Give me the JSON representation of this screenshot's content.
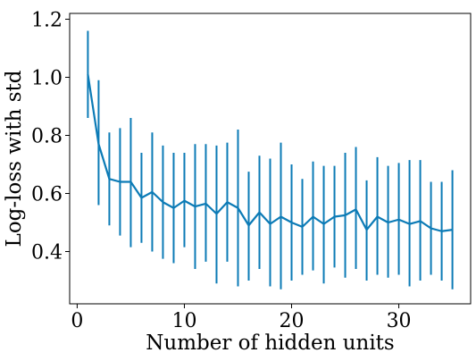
{
  "chart_data": {
    "type": "line",
    "title": "",
    "xlabel": "Number of hidden units",
    "ylabel": "Log-loss with std",
    "xlim": [
      -0.7,
      36.7
    ],
    "ylim": [
      0.22,
      1.22
    ],
    "x_ticks": [
      0,
      10,
      20,
      30
    ],
    "x_tick_labels": [
      "0",
      "10",
      "20",
      "30"
    ],
    "y_ticks": [
      0.4,
      0.6,
      0.8,
      1.0,
      1.2
    ],
    "y_tick_labels": [
      "0.4",
      "0.6",
      "0.8",
      "1.0",
      "1.2"
    ],
    "grid": false,
    "legend": false,
    "series": [
      {
        "color": "#0c7bb6",
        "x": [
          1,
          2,
          3,
          4,
          5,
          6,
          7,
          8,
          9,
          10,
          11,
          12,
          13,
          14,
          15,
          16,
          17,
          18,
          19,
          20,
          21,
          22,
          23,
          24,
          25,
          26,
          27,
          28,
          29,
          30,
          31,
          32,
          33,
          34,
          35
        ],
        "mean": [
          1.01,
          0.77,
          0.65,
          0.64,
          0.64,
          0.585,
          0.605,
          0.57,
          0.55,
          0.575,
          0.555,
          0.565,
          0.53,
          0.57,
          0.55,
          0.49,
          0.535,
          0.495,
          0.52,
          0.5,
          0.485,
          0.52,
          0.495,
          0.52,
          0.525,
          0.545,
          0.475,
          0.52,
          0.5,
          0.51,
          0.495,
          0.505,
          0.48,
          0.47,
          0.475
        ],
        "lower": [
          0.86,
          0.56,
          0.49,
          0.455,
          0.415,
          0.43,
          0.4,
          0.375,
          0.36,
          0.415,
          0.34,
          0.365,
          0.29,
          0.365,
          0.28,
          0.3,
          0.34,
          0.28,
          0.27,
          0.3,
          0.32,
          0.335,
          0.29,
          0.345,
          0.31,
          0.34,
          0.3,
          0.32,
          0.31,
          0.32,
          0.28,
          0.3,
          0.32,
          0.3,
          0.27
        ],
        "upper": [
          1.16,
          0.99,
          0.81,
          0.825,
          0.86,
          0.74,
          0.81,
          0.765,
          0.74,
          0.74,
          0.77,
          0.77,
          0.765,
          0.775,
          0.82,
          0.675,
          0.73,
          0.72,
          0.775,
          0.7,
          0.65,
          0.71,
          0.695,
          0.695,
          0.74,
          0.76,
          0.645,
          0.725,
          0.695,
          0.705,
          0.715,
          0.715,
          0.64,
          0.64,
          0.68
        ]
      }
    ]
  }
}
